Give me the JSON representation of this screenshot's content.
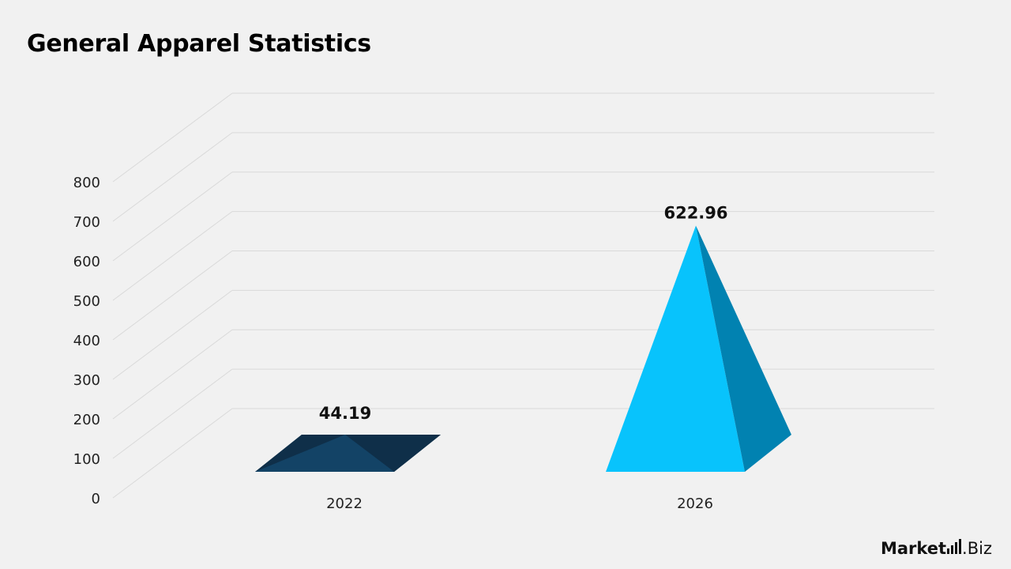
{
  "title": "General Apparel Statistics",
  "colors": {
    "background": "#f1f1f1",
    "grid": "#d9d9d9",
    "bar_2022_front": "#134366",
    "bar_2022_left": "#0f2f49",
    "bar_2022_back": "#113d5e",
    "bar_2026_front": "#08c3fc",
    "bar_2026_side": "#0182b1"
  },
  "chart_data": {
    "type": "bar",
    "categories": [
      "2022",
      "2026"
    ],
    "values": [
      44.19,
      622.96
    ],
    "data_labels": [
      "44.19",
      "622.96"
    ],
    "ylim": [
      0,
      800
    ],
    "yticks": [
      "0",
      "100",
      "200",
      "300",
      "400",
      "500",
      "600",
      "700",
      "800"
    ],
    "grid": true,
    "legend": "none"
  },
  "logo": {
    "part1": "Market",
    "part2": ".Biz"
  }
}
